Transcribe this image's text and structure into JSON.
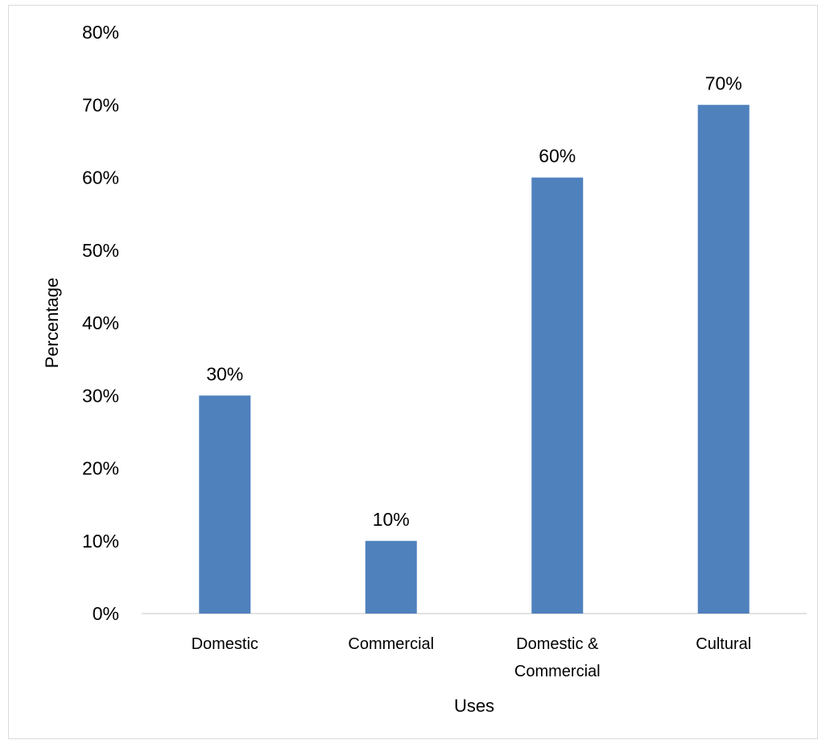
{
  "chart_data": {
    "type": "bar",
    "title": "",
    "xlabel": "Uses",
    "ylabel": "Percentage",
    "categories": [
      [
        "Domestic"
      ],
      [
        "Commercial"
      ],
      [
        "Domestic &",
        "Commercial"
      ],
      [
        "Cultural"
      ]
    ],
    "values": [
      30,
      10,
      60,
      70
    ],
    "data_labels": [
      "30%",
      "10%",
      "60%",
      "70%"
    ],
    "y_ticks": [
      0,
      10,
      20,
      30,
      40,
      50,
      60,
      70,
      80
    ],
    "y_tick_labels": [
      "0%",
      "10%",
      "20%",
      "30%",
      "40%",
      "50%",
      "60%",
      "70%",
      "80%"
    ],
    "ylim": [
      0,
      80
    ],
    "grid": false,
    "legend": "none",
    "bar_color": "#4f81bd",
    "axis_color": "#d9d9d9"
  }
}
